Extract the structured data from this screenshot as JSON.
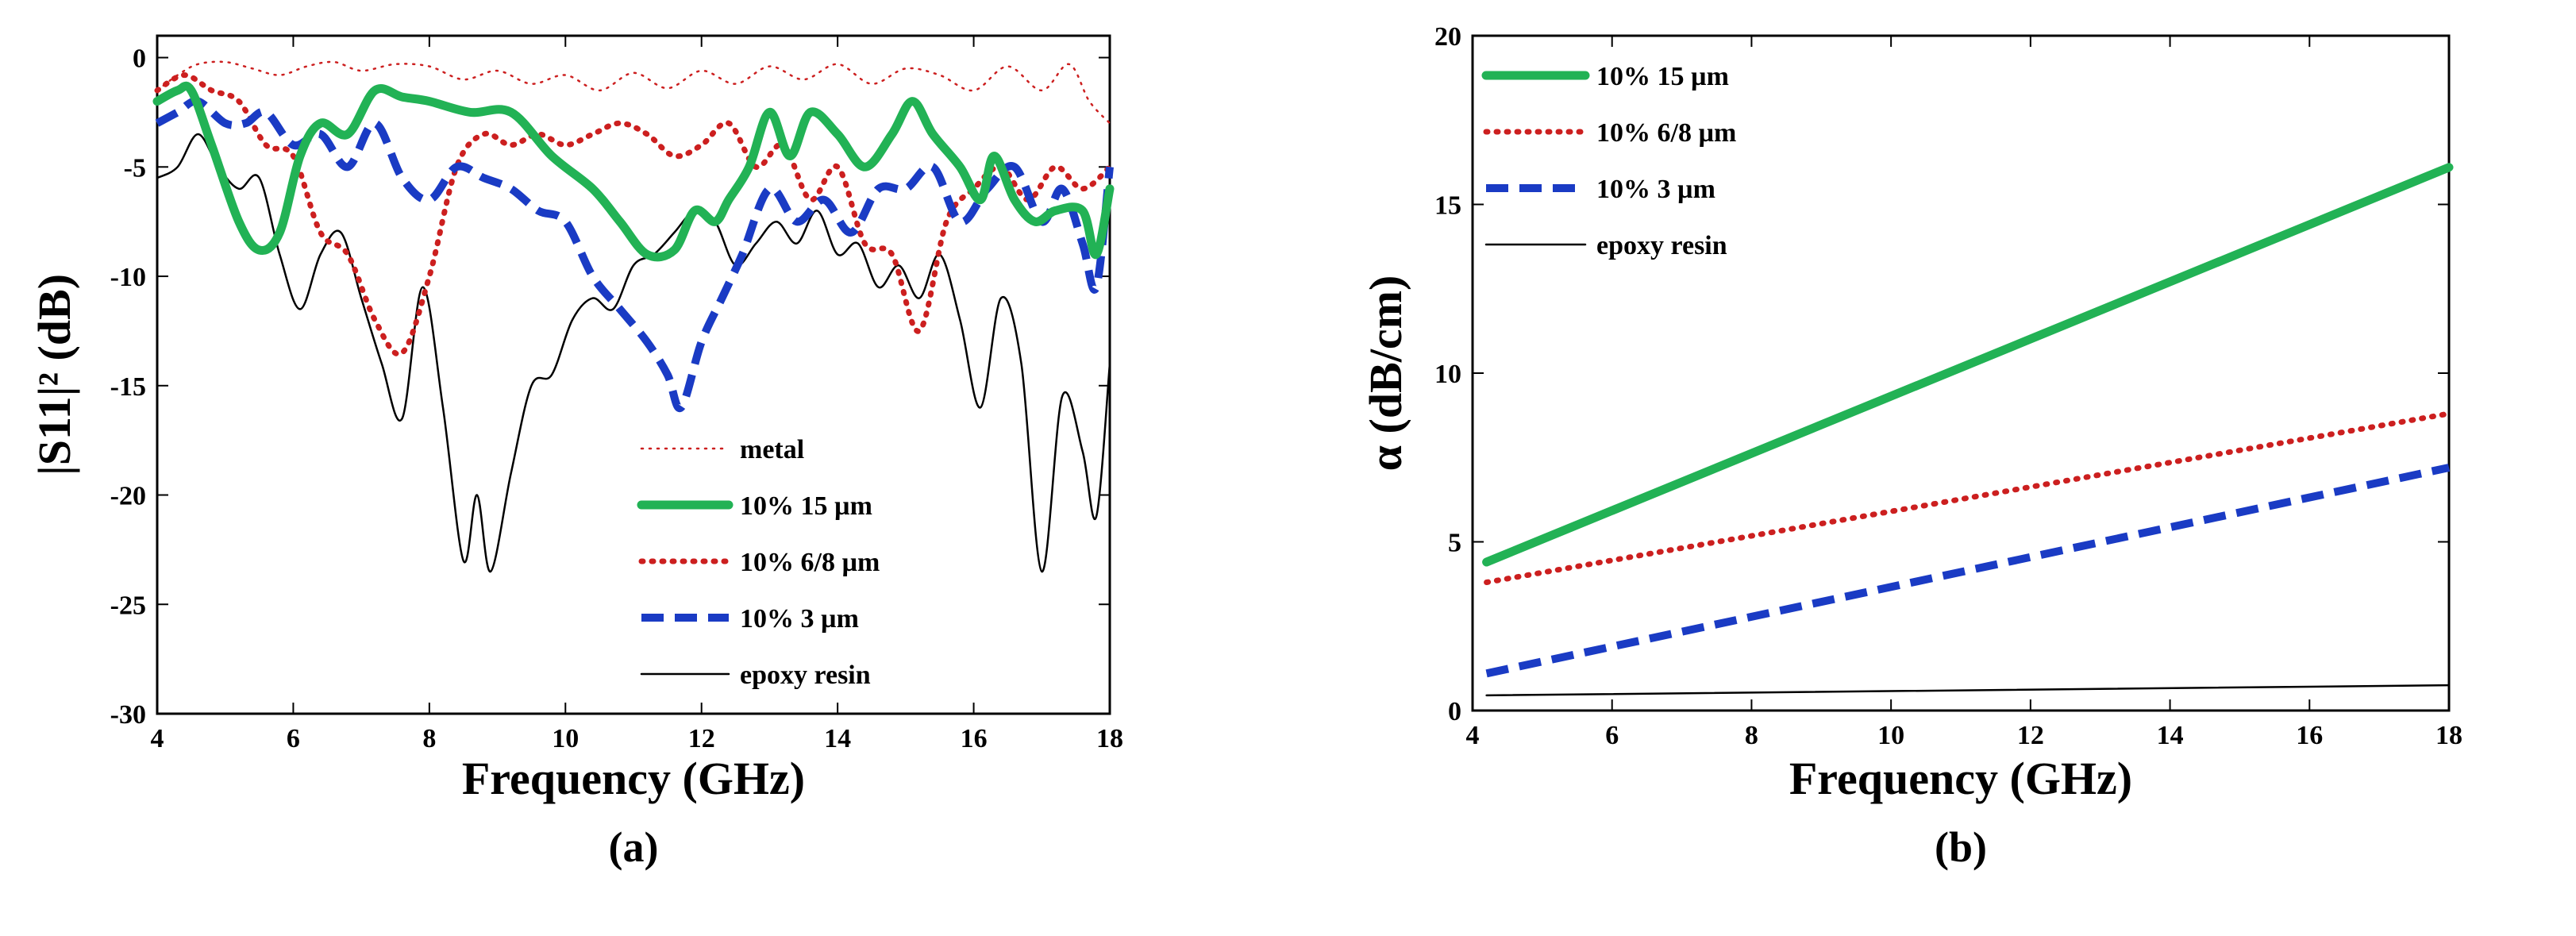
{
  "chart_data": [
    {
      "panel": "(a)",
      "type": "line",
      "xlabel": "Frequency (GHz)",
      "ylabel": "|S11|² (dB)",
      "xlim": [
        4,
        18
      ],
      "ylim": [
        -30,
        1
      ],
      "xticks": [
        4,
        6,
        8,
        10,
        12,
        14,
        16,
        18
      ],
      "yticks": [
        0,
        -5,
        -10,
        -15,
        -20,
        -25,
        -30
      ],
      "xticklabels": [
        "4",
        "6",
        "8",
        "10",
        "12",
        "14",
        "16",
        "18"
      ],
      "yticklabels": [
        "0",
        "-5",
        "-10",
        "-15",
        "-20",
        "-25",
        "-30"
      ],
      "legend_position": "bottom-right",
      "series": [
        {
          "name": "metal",
          "color": "#cc1f1f",
          "style": "dotted-thin",
          "x": [
            4,
            4.3,
            4.6,
            5,
            5.4,
            5.8,
            6.2,
            6.6,
            7,
            7.5,
            8,
            8.5,
            9,
            9.5,
            10,
            10.5,
            11,
            11.5,
            12,
            12.5,
            13,
            13.5,
            14,
            14.5,
            15,
            15.5,
            16,
            16.5,
            17,
            17.4,
            17.7,
            18
          ],
          "y": [
            -1.5,
            -0.8,
            -0.3,
            -0.2,
            -0.5,
            -0.8,
            -0.4,
            -0.2,
            -0.6,
            -0.3,
            -0.4,
            -1.0,
            -0.6,
            -1.2,
            -0.8,
            -1.5,
            -0.7,
            -1.4,
            -0.6,
            -1.2,
            -0.4,
            -1.0,
            -0.3,
            -1.2,
            -0.5,
            -0.8,
            -1.5,
            -0.4,
            -1.5,
            -0.3,
            -2.0,
            -3.0
          ]
        },
        {
          "name": "10% 15 µm",
          "color": "#22b255",
          "style": "solid-thick",
          "x": [
            4,
            4.3,
            4.5,
            4.8,
            5.2,
            5.5,
            5.8,
            6.1,
            6.4,
            6.8,
            7.2,
            7.6,
            8,
            8.6,
            9.2,
            9.8,
            10.4,
            10.8,
            11.2,
            11.6,
            11.9,
            12.2,
            12.4,
            12.7,
            13,
            13.3,
            13.6,
            14,
            14.4,
            14.8,
            15.1,
            15.4,
            15.8,
            16.1,
            16.3,
            16.6,
            16.9,
            17.2,
            17.6,
            17.8,
            18
          ],
          "y": [
            -2.0,
            -1.5,
            -1.5,
            -4.0,
            -7.5,
            -8.8,
            -8.0,
            -4.5,
            -3.0,
            -3.5,
            -1.5,
            -1.8,
            -2.0,
            -2.5,
            -2.5,
            -4.5,
            -6.0,
            -7.5,
            -9.0,
            -8.8,
            -7.0,
            -7.5,
            -6.5,
            -5.0,
            -2.5,
            -4.5,
            -2.5,
            -3.5,
            -5.0,
            -3.5,
            -2.0,
            -3.5,
            -5.0,
            -6.5,
            -4.5,
            -6.5,
            -7.5,
            -7.0,
            -7.0,
            -9.0,
            -6.0
          ]
        },
        {
          "name": "10% 6/8 µm",
          "color": "#cc1f1f",
          "style": "dotted-thick",
          "x": [
            4,
            4.4,
            4.8,
            5.2,
            5.6,
            6,
            6.4,
            6.8,
            7.2,
            7.6,
            8,
            8.4,
            8.8,
            9.2,
            9.6,
            10,
            10.4,
            10.8,
            11.2,
            11.6,
            12,
            12.4,
            12.8,
            13.2,
            13.6,
            14,
            14.4,
            14.8,
            15.2,
            15.6,
            16,
            16.4,
            16.8,
            17.2,
            17.6,
            18
          ],
          "y": [
            -1.5,
            -0.8,
            -1.5,
            -2.0,
            -4.0,
            -4.5,
            -8.0,
            -9.0,
            -12.0,
            -13.5,
            -10.0,
            -5.0,
            -3.5,
            -4.0,
            -3.5,
            -4.0,
            -3.5,
            -3.0,
            -3.5,
            -4.5,
            -4.0,
            -3.0,
            -5.0,
            -4.0,
            -6.5,
            -5.0,
            -8.5,
            -9.0,
            -12.5,
            -7.5,
            -6.0,
            -5.0,
            -6.5,
            -5.0,
            -6.0,
            -5.0
          ]
        },
        {
          "name": "10% 3 µm",
          "color": "#1a3bc4",
          "style": "dashed-thick",
          "x": [
            4,
            4.3,
            4.6,
            5,
            5.3,
            5.6,
            6,
            6.4,
            6.8,
            7.2,
            7.6,
            8,
            8.4,
            8.8,
            9.2,
            9.6,
            10,
            10.4,
            10.8,
            11.2,
            11.5,
            11.7,
            12,
            12.3,
            12.6,
            13,
            13.4,
            13.8,
            14.2,
            14.6,
            15,
            15.4,
            15.8,
            16.2,
            16.6,
            17,
            17.3,
            17.6,
            17.8,
            18
          ],
          "y": [
            -3.0,
            -2.5,
            -2.0,
            -3.0,
            -3.0,
            -2.5,
            -4.0,
            -3.5,
            -5.0,
            -3.0,
            -5.5,
            -6.5,
            -5.0,
            -5.5,
            -6.0,
            -7.0,
            -7.5,
            -10.0,
            -11.5,
            -13.0,
            -14.5,
            -16.0,
            -13.0,
            -11.0,
            -9.0,
            -6.0,
            -7.5,
            -6.5,
            -8.0,
            -6.0,
            -6.0,
            -5.0,
            -7.5,
            -6.0,
            -5.0,
            -7.5,
            -6.0,
            -8.5,
            -10.5,
            -5.0
          ]
        },
        {
          "name": "epoxy resin",
          "color": "#000000",
          "style": "solid-thin",
          "x": [
            4,
            4.3,
            4.6,
            4.9,
            5.2,
            5.5,
            5.8,
            6.1,
            6.4,
            6.7,
            7,
            7.3,
            7.6,
            7.9,
            8.2,
            8.5,
            8.7,
            8.9,
            9.2,
            9.5,
            9.8,
            10.1,
            10.4,
            10.7,
            11,
            11.3,
            11.6,
            11.9,
            12.2,
            12.5,
            12.8,
            13.1,
            13.4,
            13.7,
            14,
            14.3,
            14.6,
            14.9,
            15.2,
            15.5,
            15.8,
            16.1,
            16.4,
            16.7,
            17,
            17.3,
            17.6,
            17.8,
            18
          ],
          "y": [
            -5.5,
            -5.0,
            -3.5,
            -5.0,
            -6.0,
            -5.5,
            -9.0,
            -11.5,
            -9.0,
            -8.0,
            -11.0,
            -14.0,
            -16.5,
            -10.5,
            -16.0,
            -23.0,
            -20.0,
            -23.5,
            -19.0,
            -15.0,
            -14.5,
            -12.0,
            -11.0,
            -11.5,
            -9.5,
            -9.0,
            -8.0,
            -7.0,
            -7.5,
            -9.5,
            -8.5,
            -7.5,
            -8.5,
            -7.0,
            -9.0,
            -8.5,
            -10.5,
            -9.5,
            -11.0,
            -9.0,
            -12.0,
            -16.0,
            -11.0,
            -14.0,
            -23.5,
            -15.5,
            -18.0,
            -21.0,
            -14.0
          ]
        }
      ]
    },
    {
      "panel": "(b)",
      "type": "line",
      "xlabel": "Frequency (GHz)",
      "ylabel": "α (dB/cm)",
      "xlim": [
        4,
        18
      ],
      "ylim": [
        0,
        20
      ],
      "xticks": [
        4,
        6,
        8,
        10,
        12,
        14,
        16,
        18
      ],
      "yticks": [
        0,
        5,
        10,
        15,
        20
      ],
      "xticklabels": [
        "4",
        "6",
        "8",
        "10",
        "12",
        "14",
        "16",
        "18"
      ],
      "yticklabels": [
        "0",
        "5",
        "10",
        "15",
        "20"
      ],
      "legend_position": "top-left",
      "series": [
        {
          "name": "10% 15 µm",
          "color": "#22b255",
          "style": "solid-thick",
          "x": [
            4.2,
            18
          ],
          "y": [
            4.4,
            16.1
          ]
        },
        {
          "name": "10% 6/8 µm",
          "color": "#cc1f1f",
          "style": "dotted-thick",
          "x": [
            4.2,
            18
          ],
          "y": [
            3.8,
            8.8
          ]
        },
        {
          "name": "10% 3 µm",
          "color": "#1a3bc4",
          "style": "dashed-thick",
          "x": [
            4.2,
            18
          ],
          "y": [
            1.1,
            7.2
          ]
        },
        {
          "name": "epoxy resin",
          "color": "#000000",
          "style": "solid-thin",
          "x": [
            4.2,
            18
          ],
          "y": [
            0.45,
            0.75
          ]
        }
      ]
    }
  ]
}
